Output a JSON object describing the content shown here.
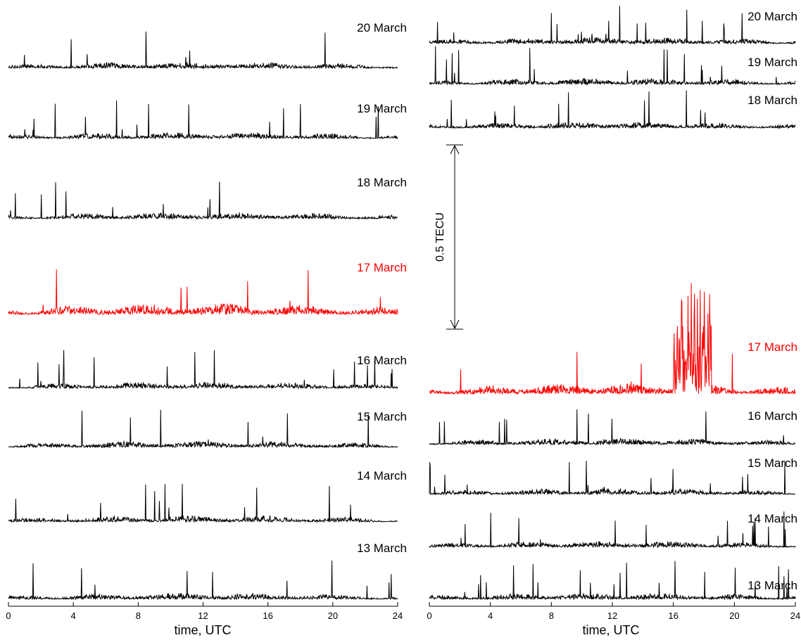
{
  "figure": {
    "colors": {
      "normal": "#000000",
      "storm": "#ff0000",
      "background": "#ffffff"
    },
    "scale_bar_label": "0.5 TECU"
  },
  "chart_data": [
    {
      "type": "line",
      "panel": "left",
      "xlabel": "time, UTC",
      "ylabel": "",
      "xlim": [
        0,
        24
      ],
      "xticks": [
        0,
        4,
        8,
        12,
        16,
        20,
        24
      ],
      "xtick_labels": [
        "0",
        "4",
        "8",
        "12",
        "16",
        "20",
        "24"
      ],
      "grid": false,
      "series": [
        {
          "name": "20 March",
          "color": "#000000"
        },
        {
          "name": "19 March",
          "color": "#000000"
        },
        {
          "name": "18 March",
          "color": "#000000"
        },
        {
          "name": "17 March",
          "color": "#ff0000"
        },
        {
          "name": "16 March",
          "color": "#000000"
        },
        {
          "name": "15 March",
          "color": "#000000"
        },
        {
          "name": "14 March",
          "color": "#000000"
        },
        {
          "name": "13 March",
          "color": "#000000"
        }
      ]
    },
    {
      "type": "line",
      "panel": "right",
      "xlabel": "time, UTC",
      "ylabel": "",
      "xlim": [
        0,
        24
      ],
      "xticks": [
        0,
        4,
        8,
        12,
        16,
        20,
        24
      ],
      "xtick_labels": [
        "0",
        "4",
        "8",
        "12",
        "16",
        "20",
        "24"
      ],
      "grid": false,
      "series": [
        {
          "name": "20 March",
          "color": "#000000"
        },
        {
          "name": "19 March",
          "color": "#000000"
        },
        {
          "name": "18 March",
          "color": "#000000"
        },
        {
          "name": "17 March",
          "color": "#ff0000"
        },
        {
          "name": "16 March",
          "color": "#000000"
        },
        {
          "name": "15 March",
          "color": "#000000"
        },
        {
          "name": "14 March",
          "color": "#000000"
        },
        {
          "name": "13 March",
          "color": "#000000"
        }
      ]
    }
  ]
}
